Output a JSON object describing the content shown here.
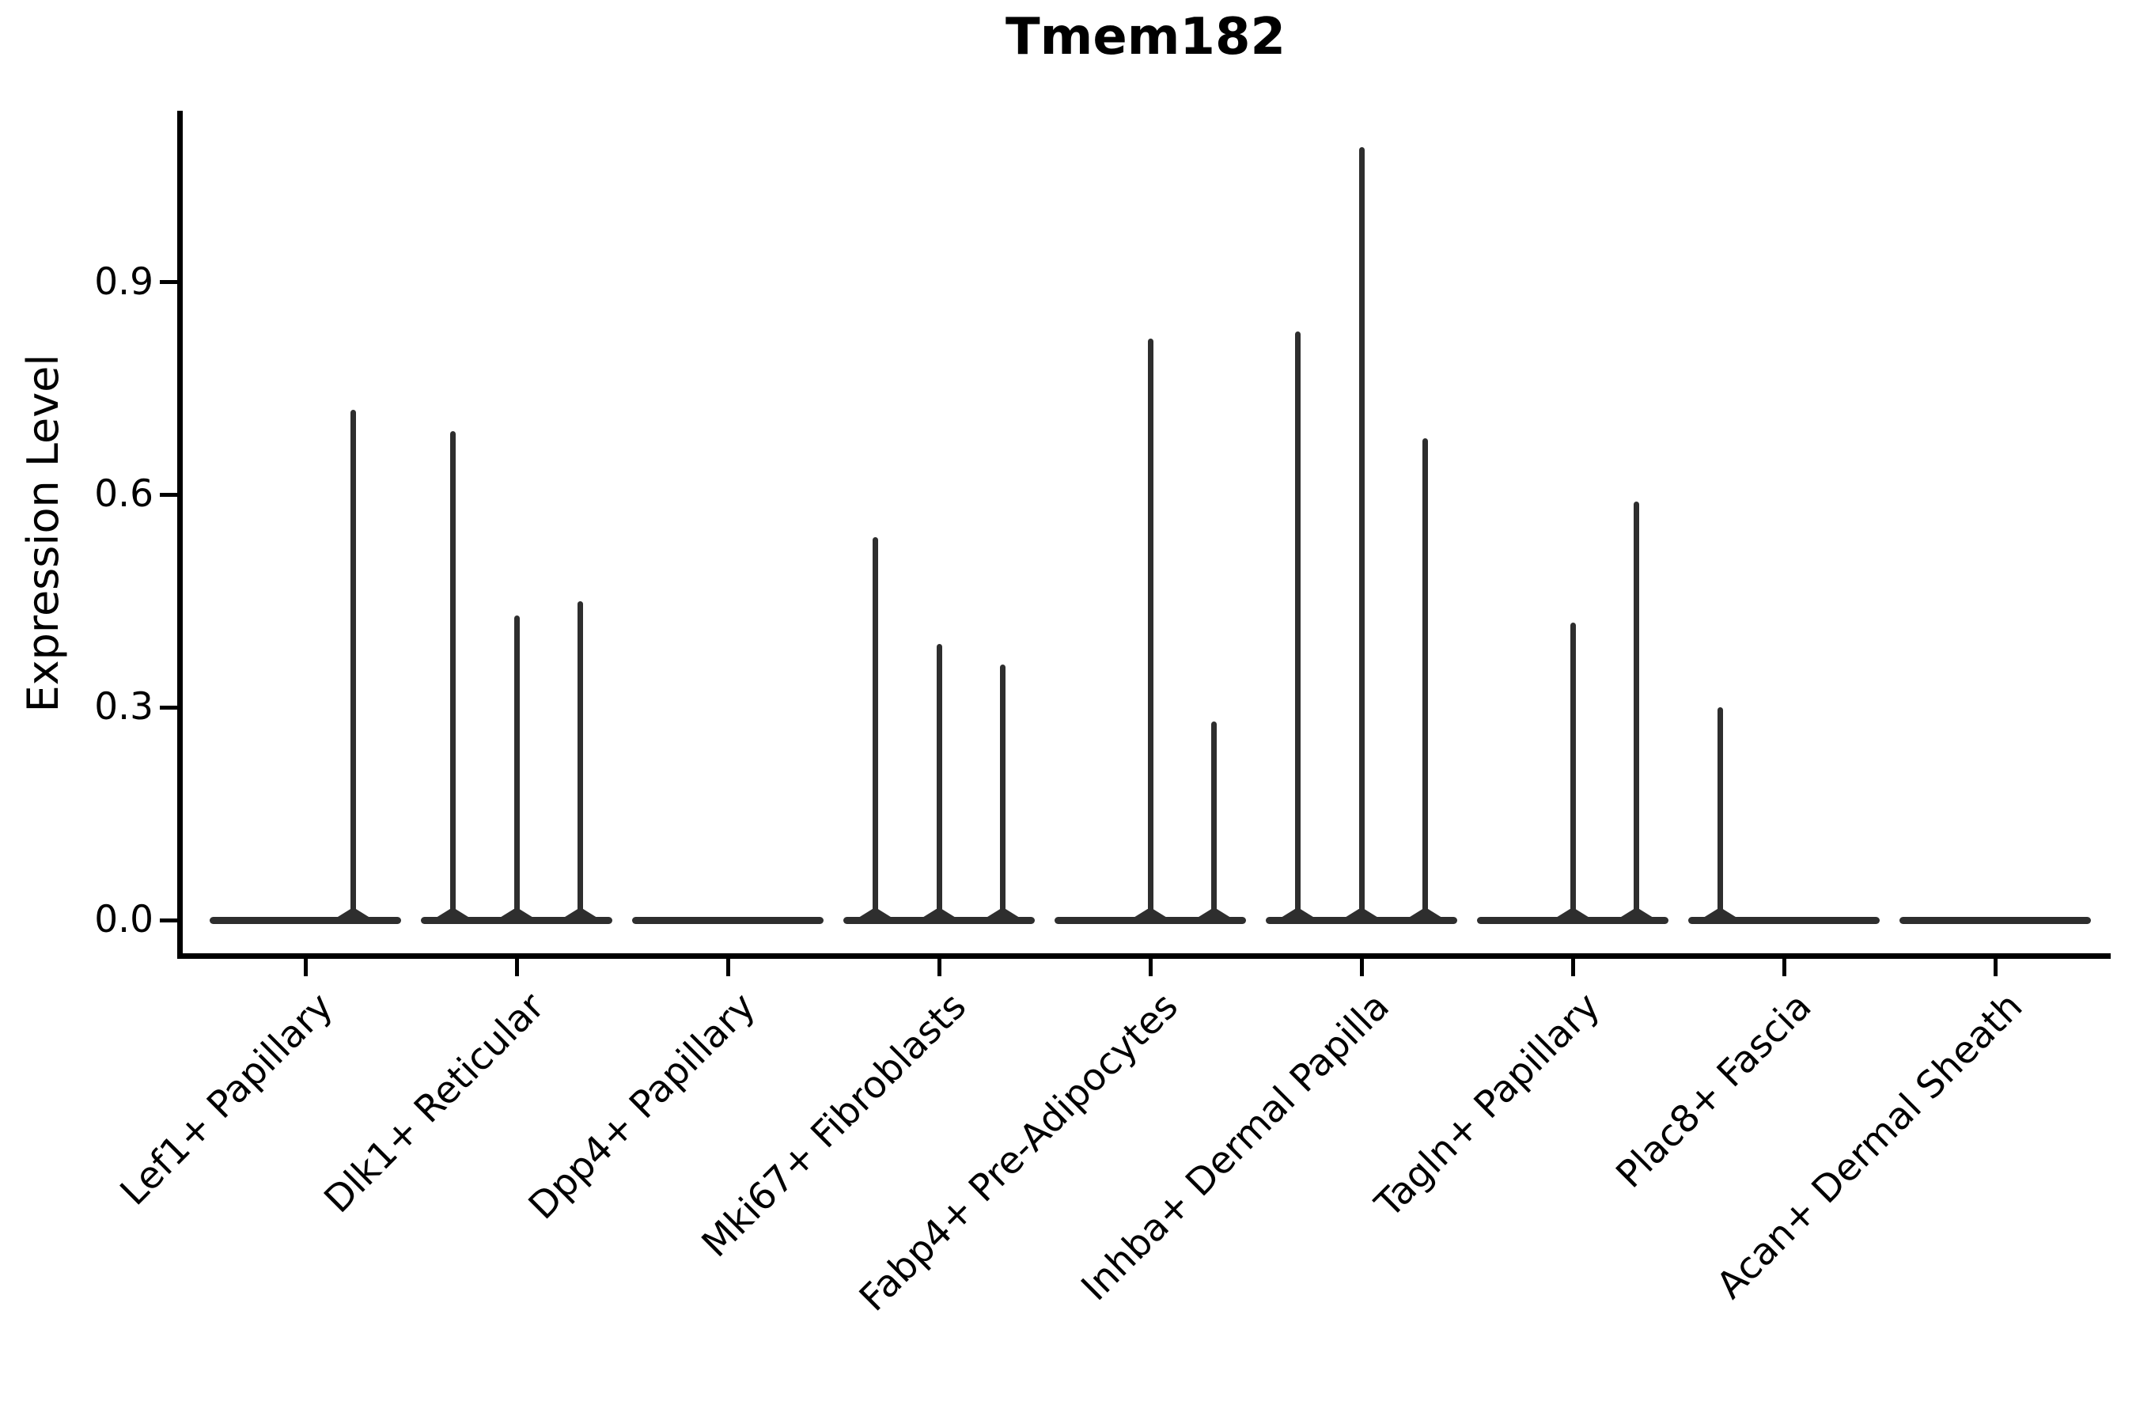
{
  "figure": {
    "title": "Tmem182",
    "y_axis": {
      "label": "Expression Level",
      "tick_labels": [
        "0.0",
        "0.3",
        "0.6",
        "0.9"
      ]
    },
    "colors": {
      "violin_line": "#2e2e2e",
      "axis": "#000000",
      "text": "#000000",
      "background": "#ffffff"
    }
  },
  "chart_data": {
    "type": "violin",
    "title": "Tmem182",
    "xlabel": "",
    "ylabel": "Expression Level",
    "ylim": [
      -0.05,
      1.14
    ],
    "yticks": [
      0.0,
      0.3,
      0.6,
      0.9
    ],
    "grid": false,
    "legend": "none",
    "description": "Violin plot of gene expression; most cells have zero expression so each violin collapses to a flat bar at 0 with a thin central spike rising to the maximum expression value. Several categories contain multiple side-by-side violins.",
    "categories": [
      "Lef1+ Papillary",
      "Dlk1+ Reticular",
      "Dpp4+ Papillary",
      "Mki67+ Fibroblasts",
      "Fabp4+ Pre-Adipocytes",
      "Inhba+ Dermal Papilla",
      "Tagln+ Papillary",
      "Plac8+ Fascia",
      "Acan+ Dermal Sheath"
    ],
    "groups": [
      {
        "label": "Lef1+ Papillary",
        "violin_max": [
          0,
          0.72
        ]
      },
      {
        "label": "Dlk1+ Reticular",
        "violin_max": [
          0.69,
          0.43,
          0.45
        ]
      },
      {
        "label": "Dpp4+ Papillary",
        "violin_max": [
          0
        ]
      },
      {
        "label": "Mki67+ Fibroblasts",
        "violin_max": [
          0.54,
          0.39,
          0.36
        ]
      },
      {
        "label": "Fabp4+ Pre-Adipocytes",
        "violin_max": [
          0,
          0.82,
          0.28
        ]
      },
      {
        "label": "Inhba+ Dermal Papilla",
        "violin_max": [
          0.83,
          1.09,
          0.68
        ]
      },
      {
        "label": "Tagln+ Papillary",
        "violin_max": [
          0,
          0.42,
          0.59
        ]
      },
      {
        "label": "Plac8+ Fascia",
        "violin_max": [
          0.3,
          0,
          0
        ]
      },
      {
        "label": "Acan+ Dermal Sheath",
        "violin_max": [
          0
        ]
      }
    ]
  }
}
